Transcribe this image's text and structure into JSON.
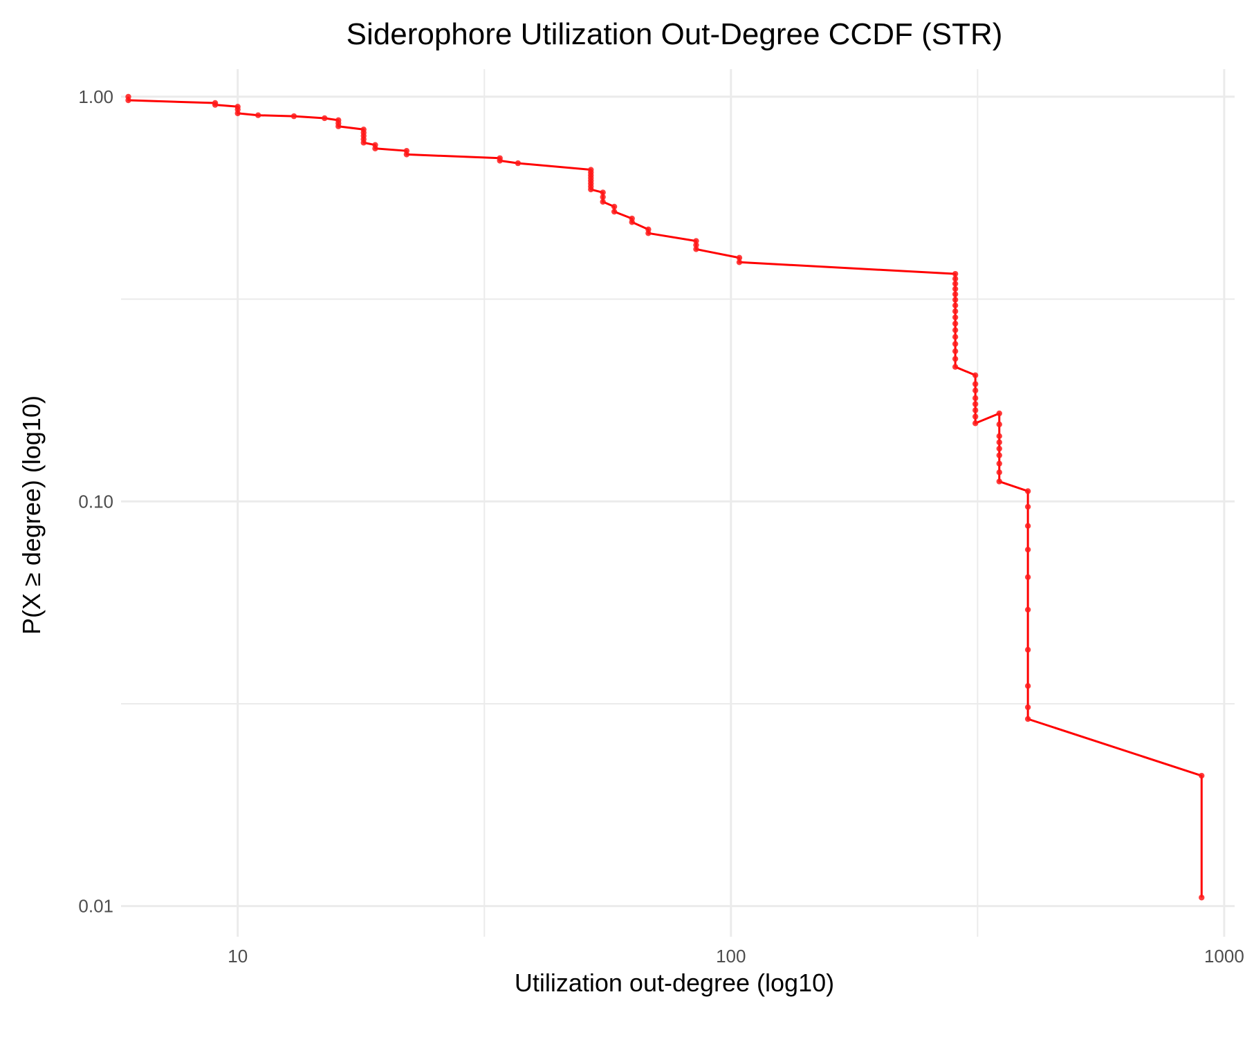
{
  "chart_data": {
    "type": "line",
    "title": "Siderophore Utilization Out-Degree CCDF (STR)",
    "xlabel": "Utilization out-degree (log10)",
    "ylabel": "P(X ≥ degree) (log10)",
    "x_scale": "log10",
    "y_scale": "log10",
    "xlim": [
      5.8,
      1050
    ],
    "ylim": [
      0.0084,
      1.17
    ],
    "x_ticks": [
      10,
      100,
      1000
    ],
    "x_tick_labels": [
      "10",
      "100",
      "1000"
    ],
    "y_ticks": [
      1.0,
      0.1,
      0.01
    ],
    "y_tick_labels": [
      "1.00",
      "0.10",
      "0.01"
    ],
    "grid": true,
    "legend": "none",
    "colors": {
      "line": "#ff0000",
      "point": "#ff1a1a",
      "grid": "#ebebeb"
    },
    "series": [
      {
        "x": [
          6.0,
          6.0,
          9.0,
          9.0,
          10.0,
          10.0,
          10.0,
          11.0,
          13.0,
          15.0,
          16.0,
          16.0,
          16.0,
          18.0,
          18.0,
          18.0,
          18.0,
          18.0,
          19.0,
          19.0,
          22.0,
          22.0,
          34.0,
          34.0,
          37.0,
          52.0,
          52.0,
          52.0,
          52.0,
          52.0,
          52.0,
          52.0,
          52.0,
          55.0,
          55.0,
          55.0,
          58.0,
          58.0,
          63.0,
          63.0,
          68.0,
          68.0,
          85.0,
          85.0,
          85.0,
          104.0,
          104.0,
          285.0,
          285.0,
          285.0,
          285.0,
          285.0,
          285.0,
          285.0,
          285.0,
          285.0,
          285.0,
          285.0,
          285.0,
          285.0,
          285.0,
          285.0,
          285.0,
          313.0,
          313.0,
          313.0,
          313.0,
          313.0,
          313.0,
          313.0,
          313.0,
          350.0,
          350.0,
          350.0,
          350.0,
          350.0,
          350.0,
          350.0,
          350.0,
          350.0,
          400.0,
          400.0,
          400.0,
          400.0,
          400.0,
          400.0,
          400.0,
          400.0,
          400.0,
          400.0,
          900.0,
          900.0
        ],
        "y": [
          1.0,
          0.98,
          0.965,
          0.955,
          0.945,
          0.93,
          0.91,
          0.9,
          0.895,
          0.885,
          0.875,
          0.86,
          0.845,
          0.83,
          0.815,
          0.8,
          0.785,
          0.77,
          0.76,
          0.745,
          0.735,
          0.72,
          0.705,
          0.695,
          0.685,
          0.66,
          0.65,
          0.64,
          0.63,
          0.62,
          0.61,
          0.6,
          0.59,
          0.58,
          0.565,
          0.55,
          0.535,
          0.52,
          0.5,
          0.49,
          0.47,
          0.46,
          0.44,
          0.43,
          0.42,
          0.4,
          0.39,
          0.365,
          0.355,
          0.345,
          0.335,
          0.325,
          0.315,
          0.305,
          0.295,
          0.285,
          0.275,
          0.265,
          0.255,
          0.245,
          0.235,
          0.225,
          0.215,
          0.205,
          0.195,
          0.188,
          0.18,
          0.174,
          0.168,
          0.162,
          0.156,
          0.165,
          0.155,
          0.145,
          0.14,
          0.135,
          0.13,
          0.124,
          0.118,
          0.112,
          0.106,
          0.097,
          0.087,
          0.076,
          0.065,
          0.054,
          0.043,
          0.035,
          0.031,
          0.029,
          0.021,
          0.0105
        ]
      }
    ]
  }
}
